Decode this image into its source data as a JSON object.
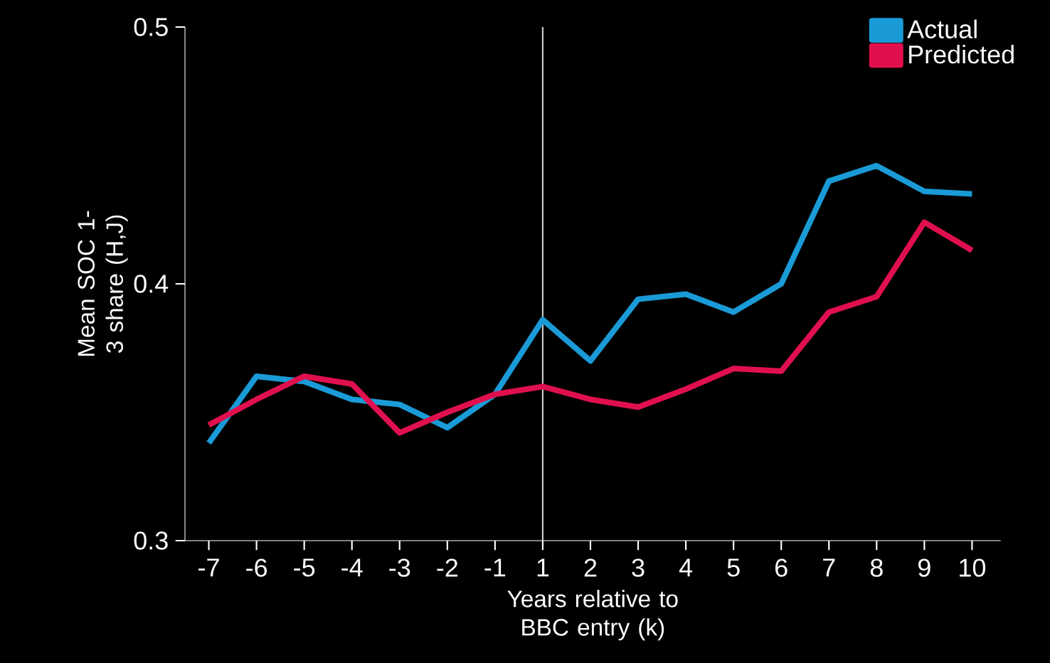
{
  "chart_data": {
    "type": "line",
    "xlabel": "Years relative to BBC entry (k)",
    "ylabel": "Mean SOC 1-3 share (H,J)",
    "categories": [
      "-7",
      "-6",
      "-5",
      "-4",
      "-3",
      "-2",
      "-1",
      "1",
      "2",
      "3",
      "4",
      "5",
      "6",
      "7",
      "8",
      "9",
      "10"
    ],
    "series": [
      {
        "name": "Actual",
        "color": "#1a9bd7",
        "values": [
          0.338,
          0.364,
          0.362,
          0.355,
          0.353,
          0.344,
          0.357,
          0.386,
          0.37,
          0.394,
          0.396,
          0.389,
          0.4,
          0.44,
          0.446,
          0.436,
          0.435
        ]
      },
      {
        "name": "Predicted",
        "color": "#e0104f",
        "values": [
          0.345,
          0.355,
          0.364,
          0.361,
          0.342,
          0.35,
          0.357,
          0.36,
          0.355,
          0.352,
          0.359,
          0.367,
          0.366,
          0.389,
          0.395,
          0.424,
          0.413
        ]
      }
    ],
    "ylim": [
      0.3,
      0.5
    ],
    "yticks": [
      0.3,
      0.4,
      0.5
    ],
    "ref_lines": [
      {
        "axis": "x",
        "value": "1",
        "color": "#cccccc"
      }
    ],
    "legend": "top right"
  }
}
